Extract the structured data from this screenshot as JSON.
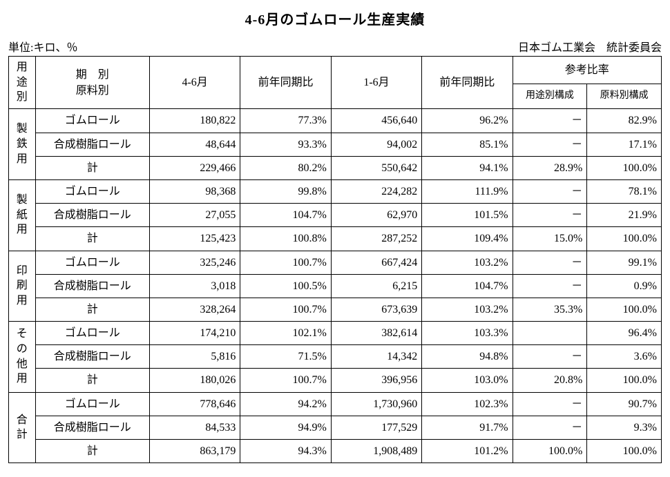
{
  "title": "4-6月のゴムロール生産実績",
  "unit_label": "単位:キロ、％",
  "source_label": "日本ゴム工業会　統計委員会",
  "header": {
    "use_col": "用\n途\n別",
    "material_col": "期　別\n原料別",
    "q46": "4-6月",
    "yoy1": "前年同期比",
    "q16": "1-6月",
    "yoy2": "前年同期比",
    "ref_group": "参考比率",
    "ref_use": "用途別構成",
    "ref_mat": "原料別構成"
  },
  "material_labels": {
    "rubber": "ゴムロール",
    "resin": "合成樹脂ロール",
    "subtotal": "計"
  },
  "dash": "－",
  "sections": [
    {
      "name": "製\n鉄\n用",
      "rows": [
        {
          "mat": "rubber",
          "q46": "180,822",
          "yoy1": "77.3%",
          "q16": "456,640",
          "yoy2": "96.2%",
          "ref_use": "－",
          "ref_mat": "82.9%"
        },
        {
          "mat": "resin",
          "q46": "48,644",
          "yoy1": "93.3%",
          "q16": "94,002",
          "yoy2": "85.1%",
          "ref_use": "－",
          "ref_mat": "17.1%"
        },
        {
          "mat": "subtotal",
          "q46": "229,466",
          "yoy1": "80.2%",
          "q16": "550,642",
          "yoy2": "94.1%",
          "ref_use": "28.9%",
          "ref_mat": "100.0%"
        }
      ]
    },
    {
      "name": "製\n紙\n用",
      "rows": [
        {
          "mat": "rubber",
          "q46": "98,368",
          "yoy1": "99.8%",
          "q16": "224,282",
          "yoy2": "111.9%",
          "ref_use": "－",
          "ref_mat": "78.1%"
        },
        {
          "mat": "resin",
          "q46": "27,055",
          "yoy1": "104.7%",
          "q16": "62,970",
          "yoy2": "101.5%",
          "ref_use": "－",
          "ref_mat": "21.9%"
        },
        {
          "mat": "subtotal",
          "q46": "125,423",
          "yoy1": "100.8%",
          "q16": "287,252",
          "yoy2": "109.4%",
          "ref_use": "15.0%",
          "ref_mat": "100.0%"
        }
      ]
    },
    {
      "name": "印\n刷\n用",
      "rows": [
        {
          "mat": "rubber",
          "q46": "325,246",
          "yoy1": "100.7%",
          "q16": "667,424",
          "yoy2": "103.2%",
          "ref_use": "－",
          "ref_mat": "99.1%"
        },
        {
          "mat": "resin",
          "q46": "3,018",
          "yoy1": "100.5%",
          "q16": "6,215",
          "yoy2": "104.7%",
          "ref_use": "－",
          "ref_mat": "0.9%"
        },
        {
          "mat": "subtotal",
          "q46": "328,264",
          "yoy1": "100.7%",
          "q16": "673,639",
          "yoy2": "103.2%",
          "ref_use": "35.3%",
          "ref_mat": "100.0%"
        }
      ]
    },
    {
      "name": "そ\nの\n他\n用",
      "rows": [
        {
          "mat": "rubber",
          "q46": "174,210",
          "yoy1": "102.1%",
          "q16": "382,614",
          "yoy2": "103.3%",
          "ref_use": "",
          "ref_mat": "96.4%"
        },
        {
          "mat": "resin",
          "q46": "5,816",
          "yoy1": "71.5%",
          "q16": "14,342",
          "yoy2": "94.8%",
          "ref_use": "－",
          "ref_mat": "3.6%"
        },
        {
          "mat": "subtotal",
          "q46": "180,026",
          "yoy1": "100.7%",
          "q16": "396,956",
          "yoy2": "103.0%",
          "ref_use": "20.8%",
          "ref_mat": "100.0%"
        }
      ]
    },
    {
      "name": "合\n計",
      "rows": [
        {
          "mat": "rubber",
          "q46": "778,646",
          "yoy1": "94.2%",
          "q16": "1,730,960",
          "yoy2": "102.3%",
          "ref_use": "－",
          "ref_mat": "90.7%"
        },
        {
          "mat": "resin",
          "q46": "84,533",
          "yoy1": "94.9%",
          "q16": "177,529",
          "yoy2": "91.7%",
          "ref_use": "－",
          "ref_mat": "9.3%"
        },
        {
          "mat": "subtotal",
          "q46": "863,179",
          "yoy1": "94.3%",
          "q16": "1,908,489",
          "yoy2": "101.2%",
          "ref_use": "100.0%",
          "ref_mat": "100.0%"
        }
      ]
    }
  ]
}
